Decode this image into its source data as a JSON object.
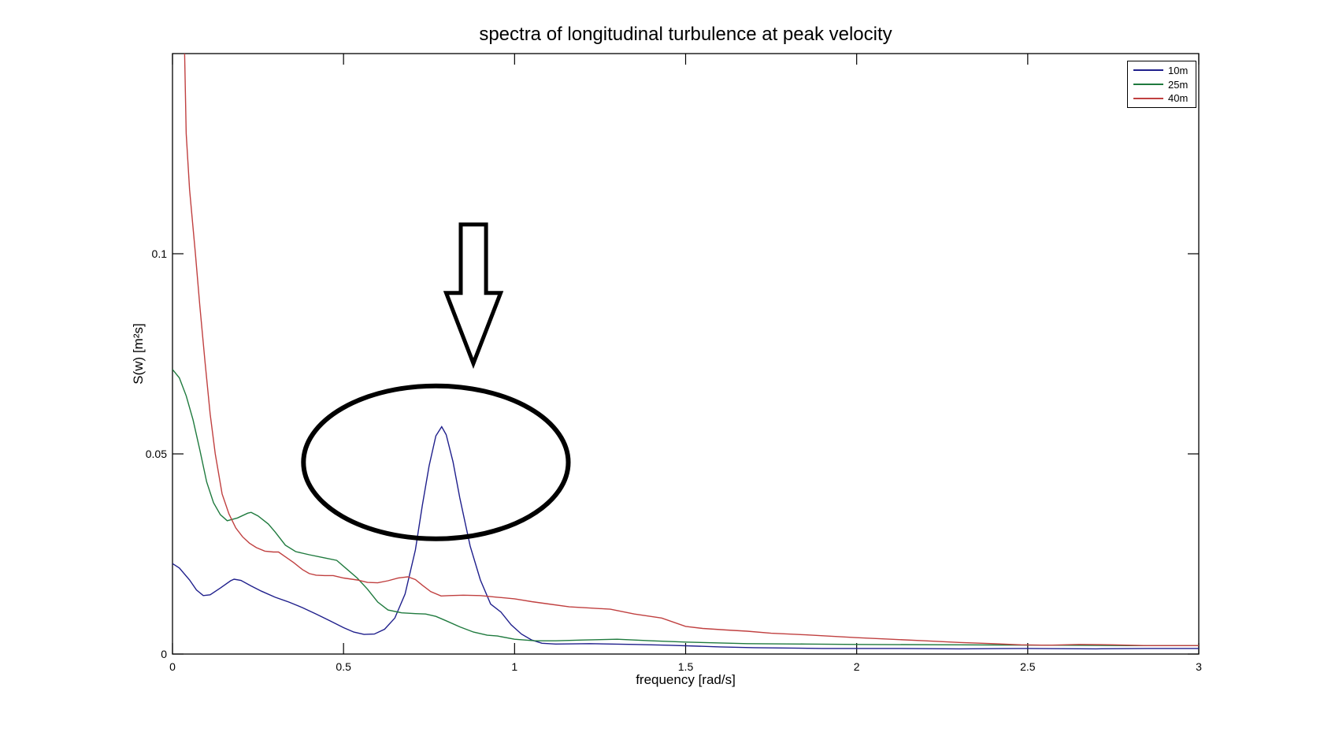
{
  "chart_data": {
    "type": "line",
    "title": "spectra of longitudinal turbulence at peak velocity",
    "xlabel": "frequency [rad/s]",
    "ylabel": "S(w) [m²s]",
    "xlim": [
      0,
      3
    ],
    "ylim": [
      0,
      0.15
    ],
    "x_ticks": [
      0,
      0.5,
      1,
      1.5,
      2,
      2.5,
      3
    ],
    "x_tick_labels": [
      "0",
      "0.5",
      "1",
      "1.5",
      "2",
      "2.5",
      "3"
    ],
    "y_ticks": [
      0,
      0.05,
      0.1
    ],
    "y_tick_labels": [
      "0",
      "0.05",
      "0.1"
    ],
    "grid": false,
    "legend_position": "top-right",
    "axis_color": "#000000",
    "background_color": "#ffffff",
    "series": [
      {
        "name": "10m",
        "color": "#1F1F8C",
        "points": [
          [
            0,
            0.0226
          ],
          [
            0.02,
            0.0215
          ],
          [
            0.05,
            0.0185
          ],
          [
            0.07,
            0.016
          ],
          [
            0.09,
            0.0146
          ],
          [
            0.11,
            0.0148
          ],
          [
            0.14,
            0.0165
          ],
          [
            0.17,
            0.0183
          ],
          [
            0.18,
            0.0187
          ],
          [
            0.2,
            0.0184
          ],
          [
            0.23,
            0.017
          ],
          [
            0.26,
            0.0157
          ],
          [
            0.3,
            0.0142
          ],
          [
            0.34,
            0.013
          ],
          [
            0.38,
            0.0116
          ],
          [
            0.42,
            0.01
          ],
          [
            0.46,
            0.0083
          ],
          [
            0.5,
            0.0066
          ],
          [
            0.53,
            0.0055
          ],
          [
            0.56,
            0.0049
          ],
          [
            0.59,
            0.005
          ],
          [
            0.62,
            0.0062
          ],
          [
            0.65,
            0.009
          ],
          [
            0.68,
            0.015
          ],
          [
            0.71,
            0.026
          ],
          [
            0.73,
            0.037
          ],
          [
            0.75,
            0.047
          ],
          [
            0.77,
            0.0545
          ],
          [
            0.787,
            0.0568
          ],
          [
            0.8,
            0.0548
          ],
          [
            0.82,
            0.048
          ],
          [
            0.84,
            0.039
          ],
          [
            0.87,
            0.027
          ],
          [
            0.9,
            0.0185
          ],
          [
            0.93,
            0.0125
          ],
          [
            0.96,
            0.0105
          ],
          [
            0.99,
            0.0073
          ],
          [
            1.02,
            0.005
          ],
          [
            1.05,
            0.0035
          ],
          [
            1.08,
            0.0027
          ],
          [
            1.12,
            0.0025
          ],
          [
            1.22,
            0.0026
          ],
          [
            1.35,
            0.0024
          ],
          [
            1.45,
            0.0022
          ],
          [
            1.6,
            0.0018
          ],
          [
            1.7,
            0.0016
          ],
          [
            1.9,
            0.0014
          ],
          [
            2.1,
            0.0014
          ],
          [
            2.3,
            0.0013
          ],
          [
            2.5,
            0.0014
          ],
          [
            2.7,
            0.0013
          ],
          [
            2.85,
            0.0014
          ],
          [
            3,
            0.0014
          ]
        ]
      },
      {
        "name": "25m",
        "color": "#1F7A3E",
        "points": [
          [
            0,
            0.0711
          ],
          [
            0.02,
            0.069
          ],
          [
            0.04,
            0.0645
          ],
          [
            0.06,
            0.0585
          ],
          [
            0.08,
            0.051
          ],
          [
            0.1,
            0.043
          ],
          [
            0.12,
            0.0378
          ],
          [
            0.14,
            0.0348
          ],
          [
            0.16,
            0.0333
          ],
          [
            0.19,
            0.034
          ],
          [
            0.22,
            0.0352
          ],
          [
            0.23,
            0.0354
          ],
          [
            0.25,
            0.0345
          ],
          [
            0.28,
            0.0325
          ],
          [
            0.3,
            0.0305
          ],
          [
            0.33,
            0.0272
          ],
          [
            0.36,
            0.0256
          ],
          [
            0.4,
            0.0248
          ],
          [
            0.44,
            0.0241
          ],
          [
            0.48,
            0.0234
          ],
          [
            0.51,
            0.0212
          ],
          [
            0.54,
            0.019
          ],
          [
            0.57,
            0.0162
          ],
          [
            0.6,
            0.013
          ],
          [
            0.63,
            0.011
          ],
          [
            0.67,
            0.0103
          ],
          [
            0.71,
            0.0101
          ],
          [
            0.74,
            0.01
          ],
          [
            0.77,
            0.0094
          ],
          [
            0.8,
            0.0083
          ],
          [
            0.84,
            0.0068
          ],
          [
            0.88,
            0.0055
          ],
          [
            0.92,
            0.0047
          ],
          [
            0.95,
            0.0045
          ],
          [
            1,
            0.0037
          ],
          [
            1.06,
            0.0033
          ],
          [
            1.12,
            0.0033
          ],
          [
            1.2,
            0.0035
          ],
          [
            1.3,
            0.0037
          ],
          [
            1.4,
            0.0033
          ],
          [
            1.5,
            0.003
          ],
          [
            1.68,
            0.0026
          ],
          [
            1.85,
            0.0025
          ],
          [
            2,
            0.0024
          ],
          [
            2.3,
            0.0023
          ],
          [
            2.6,
            0.0022
          ],
          [
            2.8,
            0.0021
          ],
          [
            3,
            0.0021
          ]
        ]
      },
      {
        "name": "40m",
        "color": "#C04040",
        "points": [
          [
            0.034,
            0.156
          ],
          [
            0.04,
            0.13
          ],
          [
            0.05,
            0.116
          ],
          [
            0.067,
            0.1
          ],
          [
            0.08,
            0.087
          ],
          [
            0.095,
            0.073
          ],
          [
            0.11,
            0.06
          ],
          [
            0.125,
            0.05
          ],
          [
            0.145,
            0.04
          ],
          [
            0.165,
            0.035
          ],
          [
            0.185,
            0.0315
          ],
          [
            0.205,
            0.0293
          ],
          [
            0.225,
            0.0277
          ],
          [
            0.245,
            0.0266
          ],
          [
            0.27,
            0.0257
          ],
          [
            0.295,
            0.0255
          ],
          [
            0.31,
            0.0255
          ],
          [
            0.33,
            0.0243
          ],
          [
            0.355,
            0.0228
          ],
          [
            0.38,
            0.0211
          ],
          [
            0.4,
            0.0201
          ],
          [
            0.42,
            0.0197
          ],
          [
            0.445,
            0.0196
          ],
          [
            0.47,
            0.0196
          ],
          [
            0.5,
            0.019
          ],
          [
            0.54,
            0.0185
          ],
          [
            0.57,
            0.0179
          ],
          [
            0.6,
            0.0178
          ],
          [
            0.63,
            0.0183
          ],
          [
            0.66,
            0.019
          ],
          [
            0.688,
            0.0193
          ],
          [
            0.71,
            0.0186
          ],
          [
            0.73,
            0.0172
          ],
          [
            0.755,
            0.0156
          ],
          [
            0.785,
            0.0145
          ],
          [
            0.81,
            0.0146
          ],
          [
            0.85,
            0.0147
          ],
          [
            0.9,
            0.0146
          ],
          [
            0.95,
            0.0142
          ],
          [
            1,
            0.0138
          ],
          [
            1.05,
            0.0131
          ],
          [
            1.1,
            0.0125
          ],
          [
            1.16,
            0.0118
          ],
          [
            1.22,
            0.0115
          ],
          [
            1.28,
            0.0112
          ],
          [
            1.35,
            0.01
          ],
          [
            1.43,
            0.009
          ],
          [
            1.5,
            0.0069
          ],
          [
            1.55,
            0.0064
          ],
          [
            1.62,
            0.006
          ],
          [
            1.68,
            0.0057
          ],
          [
            1.75,
            0.0052
          ],
          [
            1.85,
            0.0048
          ],
          [
            2,
            0.0041
          ],
          [
            2.1,
            0.0037
          ],
          [
            2.2,
            0.0033
          ],
          [
            2.3,
            0.0029
          ],
          [
            2.4,
            0.0026
          ],
          [
            2.48,
            0.0023
          ],
          [
            2.56,
            0.0022
          ],
          [
            2.65,
            0.0024
          ],
          [
            2.75,
            0.0023
          ],
          [
            2.85,
            0.0021
          ],
          [
            3,
            0.0021
          ]
        ]
      }
    ],
    "annotations": {
      "ellipse": {
        "center": [
          0.77,
          0.0479
        ],
        "rx": 0.387,
        "ry": 0.0191,
        "color": "#000000",
        "stroke_width": 6
      },
      "arrow": {
        "direction": "down",
        "tip": [
          0.8796,
          0.0726
        ],
        "shaft_top": 0.1073,
        "head_top": 0.0902,
        "shaft_halfwidth": 0.037,
        "head_halfwidth": 0.0795,
        "color": "#000000",
        "stroke_width": 5
      }
    }
  }
}
